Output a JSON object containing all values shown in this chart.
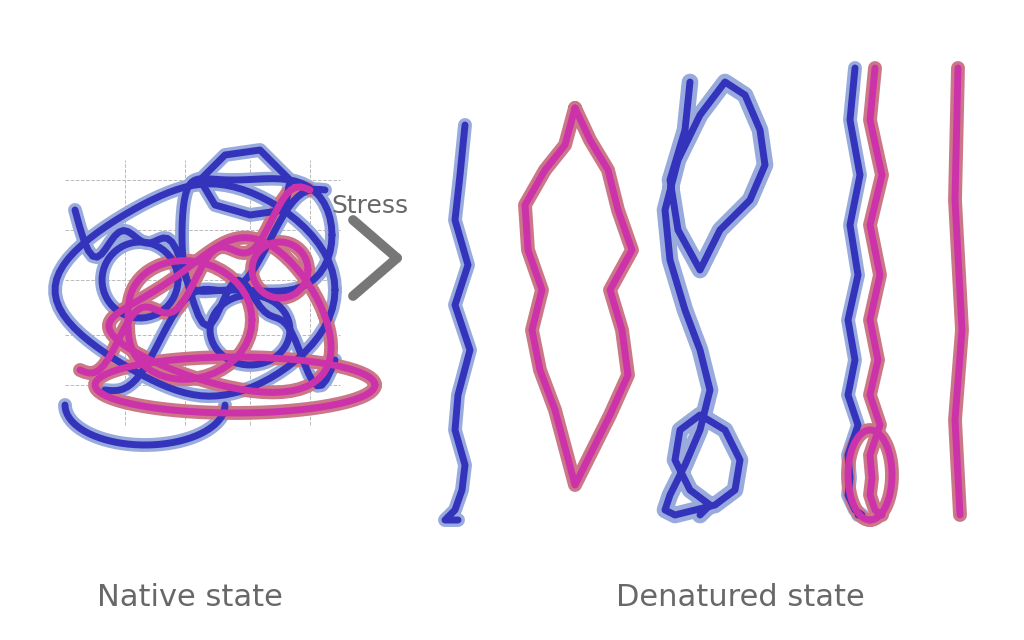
{
  "bg_color": "#ffffff",
  "native_label": "Native state",
  "denatured_label": "Denatured state",
  "stress_label": "Stress",
  "label_color": "#686868",
  "label_fontsize": 22,
  "stress_fontsize": 18,
  "color_blue_dark": "#3333bb",
  "color_blue_light": "#99aadd",
  "color_pink": "#cc7788",
  "color_magenta": "#cc33aa",
  "lw_outer": 10,
  "lw_inner": 5
}
